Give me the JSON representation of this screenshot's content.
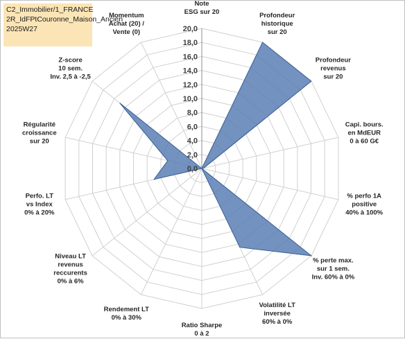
{
  "title_box": {
    "lines": [
      "C2_Immobilier/1_FRANCE",
      "2R_IdFPtCouronne_Maison_Ancien",
      "2025W27"
    ],
    "background": "#fbe5b6"
  },
  "chart_data": {
    "type": "radar",
    "r_range": [
      0,
      20
    ],
    "r_ticks": [
      "0,0",
      "2,0",
      "4,0",
      "6,0",
      "8,0",
      "10,0",
      "12,0",
      "14,0",
      "16,0",
      "18,0",
      "20,0"
    ],
    "grid": true,
    "fill_color": "#5b7fb4",
    "stroke_color": "#3a5f96",
    "axes": [
      {
        "label": [
          "Note",
          "ESG sur 20"
        ],
        "value": 0
      },
      {
        "label": [
          "Profondeur",
          "historique",
          "sur 20"
        ],
        "value": 20
      },
      {
        "label": [
          "Profondeur",
          "revenus",
          "sur 20"
        ],
        "value": 20
      },
      {
        "label": [
          "Capi. bours.",
          "en MdEUR",
          "0 à 60 G€"
        ],
        "value": 0.3
      },
      {
        "label": [
          "% perfo 1A",
          "positive",
          "40% à 100%"
        ],
        "value": 0
      },
      {
        "label": [
          "% perte max.",
          "sur 1 sem.",
          "Inv. 60% à 0%"
        ],
        "value": 20
      },
      {
        "label": [
          "Volatilité LT",
          "inversée",
          "60% à 0%"
        ],
        "value": 12.5
      },
      {
        "label": [
          "Ratio Sharpe",
          "0 à 2"
        ],
        "value": 0
      },
      {
        "label": [
          "Rendement LT",
          "0% à 30%"
        ],
        "value": 0
      },
      {
        "label": [
          "Niveau LT",
          "revenus",
          "reccurents",
          "0% à 6%"
        ],
        "value": 0
      },
      {
        "label": [
          "Perfo. LT",
          "vs Index",
          "0% à 20%"
        ],
        "value": 7
      },
      {
        "label": [
          "Régularité",
          "croissance",
          "sur 20"
        ],
        "value": 5
      },
      {
        "label": [
          "Z-score",
          "10 sem.",
          "Inv. 2,5 à -2,5"
        ],
        "value": 15
      },
      {
        "label": [
          "Momentum",
          "Achat (20) /",
          "Vente (0)"
        ],
        "value": 0
      }
    ]
  }
}
